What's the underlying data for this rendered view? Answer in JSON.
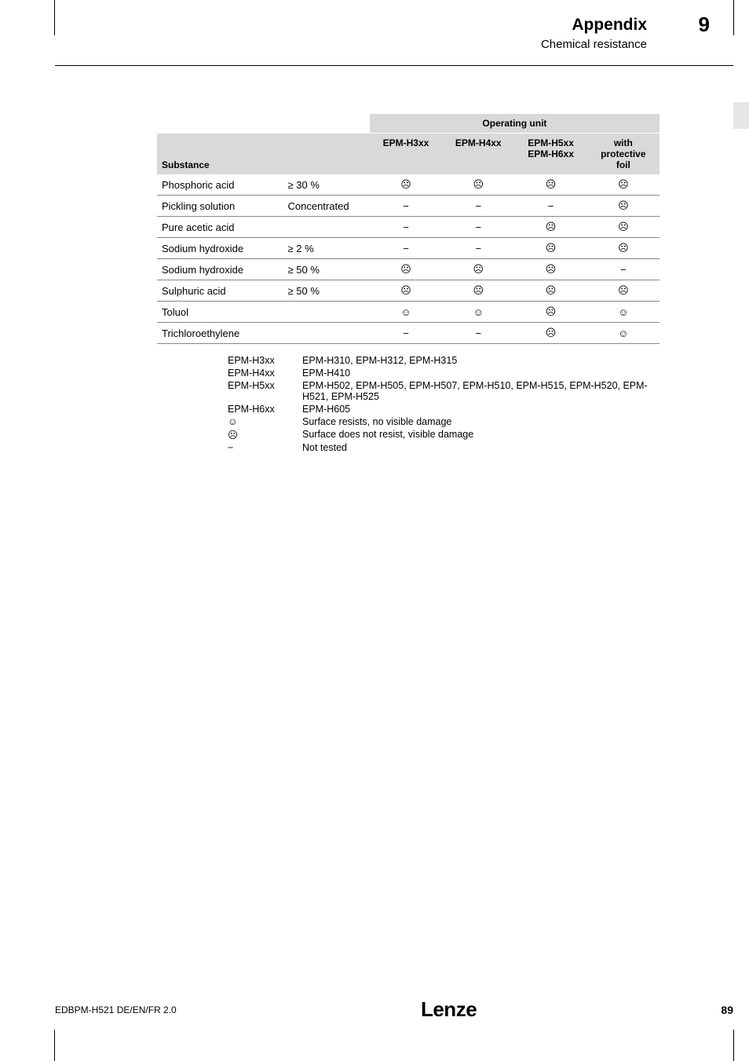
{
  "header": {
    "title": "Appendix",
    "subtitle": "Chemical resistance",
    "chapter": "9"
  },
  "table": {
    "operating_unit": "Operating unit",
    "cols": [
      "EPM-H3xx",
      "EPM-H4xx",
      "EPM-H5xx\nEPM-H6xx",
      "with\nprotective\nfoil"
    ],
    "substance_label": "Substance",
    "rows": [
      {
        "name": "Phosphoric acid",
        "cond": "≥ 30 %",
        "v": [
          "☹",
          "☹",
          "☹",
          "☹"
        ]
      },
      {
        "name": "Pickling solution",
        "cond": "Concentrated",
        "v": [
          "−",
          "−",
          "−",
          "☹"
        ]
      },
      {
        "name": "Pure acetic acid",
        "cond": "",
        "v": [
          "−",
          "−",
          "☹",
          "☹"
        ]
      },
      {
        "name": "Sodium hydroxide",
        "cond": "≥ 2 %",
        "v": [
          "−",
          "−",
          "☹",
          "☹"
        ]
      },
      {
        "name": "Sodium hydroxide",
        "cond": "≥ 50 %",
        "v": [
          "☹",
          "☹",
          "☹",
          "−"
        ]
      },
      {
        "name": "Sulphuric acid",
        "cond": "≥ 50 %",
        "v": [
          "☹",
          "☹",
          "☹",
          "☹"
        ]
      },
      {
        "name": "Toluol",
        "cond": "",
        "v": [
          "☺",
          "☺",
          "☹",
          "☺"
        ]
      },
      {
        "name": "Trichloroethylene",
        "cond": "",
        "v": [
          "−",
          "−",
          "☹",
          "☺"
        ]
      }
    ]
  },
  "legend": [
    {
      "k": "EPM-H3xx",
      "v": "EPM-H310, EPM-H312, EPM-H315"
    },
    {
      "k": "EPM-H4xx",
      "v": "EPM-H410"
    },
    {
      "k": "EPM-H5xx",
      "v": "EPM-H502, EPM-H505, EPM-H507, EPM-H510, EPM-H515, EPM-H520, EPM-H521, EPM-H525"
    },
    {
      "k": "EPM-H6xx",
      "v": "EPM-H605"
    },
    {
      "k": "☺",
      "v": "Surface resists, no visible damage"
    },
    {
      "k": "☹",
      "v": "Surface does not resist, visible damage"
    },
    {
      "k": "−",
      "v": "Not tested"
    }
  ],
  "footer": {
    "doc": "EDBPM-H521  DE/EN/FR  2.0",
    "brand": "Lenze",
    "page": "89"
  },
  "colors": {
    "header_bg": "#d9d9d9",
    "rule": "#888888",
    "sidetab": "#e6e6e6"
  }
}
